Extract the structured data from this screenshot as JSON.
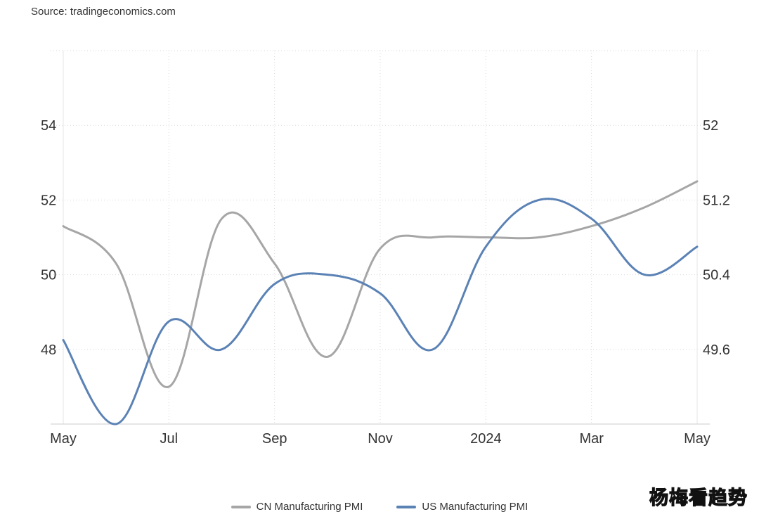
{
  "source": "Source: tradingeconomics.com",
  "watermark": "杨梅看趋势",
  "chart_data": {
    "type": "line",
    "x_ticks": [
      "May",
      "Jul",
      "Sep",
      "Nov",
      "2024",
      "Mar",
      "May"
    ],
    "x": [
      "2023-05",
      "2023-06",
      "2023-07",
      "2023-08",
      "2023-09",
      "2023-10",
      "2023-11",
      "2023-12",
      "2024-01",
      "2024-02",
      "2024-03",
      "2024-04",
      "2024-05"
    ],
    "left_axis": {
      "ticks": [
        48,
        50,
        52,
        54
      ],
      "range": [
        46,
        56
      ]
    },
    "right_axis": {
      "ticks": [
        49.6,
        50.4,
        51.2,
        52
      ],
      "range": [
        48.8,
        52.8
      ]
    },
    "grid": true,
    "legend_position": "bottom",
    "series": [
      {
        "name": "CN Manufacturing PMI",
        "axis": "left",
        "color": "#a6a6a6",
        "values": [
          51.3,
          50.3,
          47.0,
          51.5,
          50.3,
          47.8,
          50.7,
          51.0,
          51.0,
          51.0,
          51.3,
          51.8,
          52.5
        ]
      },
      {
        "name": "US Manufacturing PMI",
        "axis": "right",
        "color": "#5b82b5",
        "values": [
          49.7,
          48.8,
          49.9,
          49.6,
          50.3,
          50.4,
          50.2,
          49.6,
          50.7,
          51.2,
          51.0,
          50.4,
          50.7
        ]
      }
    ]
  }
}
